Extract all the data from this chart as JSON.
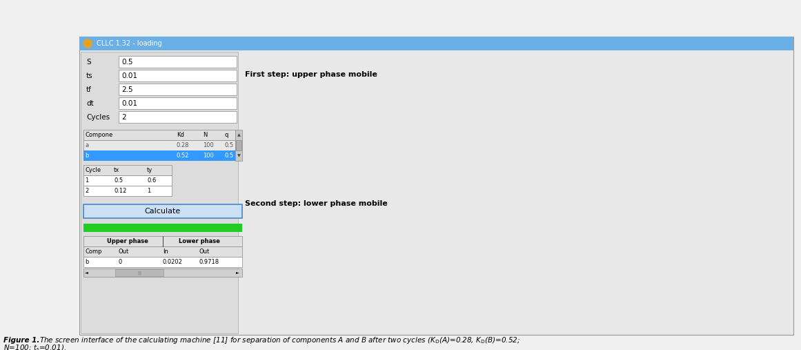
{
  "fig_width": 11.61,
  "fig_height": 5.07,
  "dpi": 100,
  "bg_color": "#f0f0f0",
  "win_bg": "#e8e8e8",
  "left_panel_bg": "#d9d9d9",
  "white": "#ffffff",
  "title_bar_color": "#6aafe6",
  "blue_row": "#3399ff",
  "green_bar": "#22cc22",
  "grid_color": "#888888",
  "grid_style": ":",
  "label_fields": [
    {
      "label": "S",
      "value": "0.5"
    },
    {
      "label": "ts",
      "value": "0.01"
    },
    {
      "label": "tf",
      "value": "2.5"
    },
    {
      "label": "dt",
      "value": "0.01"
    },
    {
      "label": "Cycles",
      "value": "2"
    }
  ],
  "comp_table_header": [
    "Compone",
    "Kd",
    "N",
    "q"
  ],
  "comp_row_a": [
    "a",
    "0.28",
    "100",
    "0.5"
  ],
  "comp_row_b": [
    "b",
    "0.52",
    "100",
    "0.5"
  ],
  "cycle_header": [
    "Cycle",
    "tx",
    "ty"
  ],
  "cycle_row1": [
    "1",
    "0.5",
    "0.6"
  ],
  "cycle_row2": [
    "2",
    "0.12",
    "1"
  ],
  "lower_header": [
    "Upper phase",
    "Lower phase"
  ],
  "lower_subheader": [
    "Comp",
    "Out",
    "In",
    "Out"
  ],
  "lower_row": [
    "b",
    "0",
    "0.0202",
    "0.9718"
  ],
  "first_step_title": "First step: upper phase mobile",
  "second_step_title": "Second step: lower phase mobile",
  "caption_bold": "Figure 1.",
  "caption_italic": " The screen interface of the calculating machine [11] for separation of components A and B after two cycles (K",
  "caption_line2": "N=100; t",
  "caption_sub": "s",
  "caption_end": "=0.01).",
  "KD_part": "D",
  "caption_middle": "(A)=0.28, K",
  "caption_middle2": "(B)=0.52;"
}
